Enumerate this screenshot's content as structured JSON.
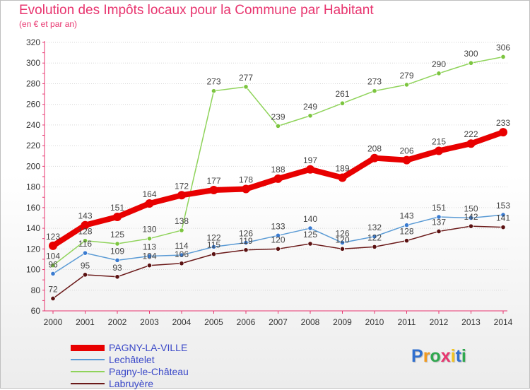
{
  "chart_data": {
    "type": "line",
    "title": "Evolution des Impôts locaux pour la Commune par Habitant",
    "subtitle": "(en € et par an)",
    "xlabel": "",
    "ylabel": "",
    "ylim": [
      60,
      320
    ],
    "y_ticks": [
      60,
      80,
      100,
      120,
      140,
      160,
      180,
      200,
      220,
      240,
      260,
      280,
      300,
      320
    ],
    "x": [
      "2000",
      "2001",
      "2002",
      "2003",
      "2004",
      "2005",
      "2006",
      "2007",
      "2008",
      "2009",
      "2010",
      "2011",
      "2012",
      "2013",
      "2014"
    ],
    "grid": "horizontal",
    "legend_position": "bottom-left",
    "series": [
      {
        "name": "PAGNY-LA-VILLE",
        "color": "#e80000",
        "values": [
          123,
          143,
          151,
          164,
          172,
          177,
          178,
          188,
          197,
          189,
          208,
          206,
          215,
          222,
          233
        ]
      },
      {
        "name": "Lechâtelet",
        "color": "#5b9bd5",
        "values": [
          96,
          116,
          109,
          113,
          114,
          122,
          126,
          133,
          140,
          126,
          132,
          143,
          151,
          150,
          153
        ]
      },
      {
        "name": "Pagny-le-Château",
        "color": "#8fd35a",
        "values": [
          104,
          128,
          125,
          130,
          138,
          273,
          277,
          239,
          249,
          261,
          273,
          279,
          290,
          300,
          306
        ]
      },
      {
        "name": "Labruyère",
        "color": "#6b1a1a",
        "values": [
          72,
          95,
          93,
          104,
          106,
          115,
          119,
          120,
          125,
          120,
          122,
          128,
          137,
          142,
          141
        ]
      }
    ],
    "data_labels": [
      {
        "series": 0,
        "labels": [
          "123",
          "143",
          "151",
          "164",
          "172",
          "177",
          "178",
          "188",
          "197",
          "189",
          "208",
          "206",
          "215",
          "222",
          "233"
        ]
      },
      {
        "series": 1,
        "labels": [
          "96",
          "116",
          "109",
          "113",
          "114",
          "122",
          "126",
          "133",
          "140",
          "126",
          "132",
          "143",
          "151",
          "150",
          "153"
        ]
      },
      {
        "series": 2,
        "labels": [
          "104",
          "128",
          "125",
          "130",
          "138",
          "273",
          "277",
          "239",
          "249",
          "261",
          "273",
          "279",
          "290",
          "300",
          "306"
        ]
      },
      {
        "series": 3,
        "labels": [
          "72",
          "95",
          "93",
          "104",
          "106",
          "115",
          "119",
          "120",
          "125",
          "120",
          "122",
          "128",
          "137",
          "142",
          "141"
        ]
      }
    ]
  },
  "logo": {
    "letters": [
      "P",
      "r",
      "o",
      "x",
      "i",
      "t",
      "i"
    ],
    "colors": [
      "#2f6fcf",
      "#f29a1f",
      "#2fa84f",
      "#e8356f",
      "#f2c41f",
      "#2f6fcf",
      "#2fa84f"
    ]
  }
}
